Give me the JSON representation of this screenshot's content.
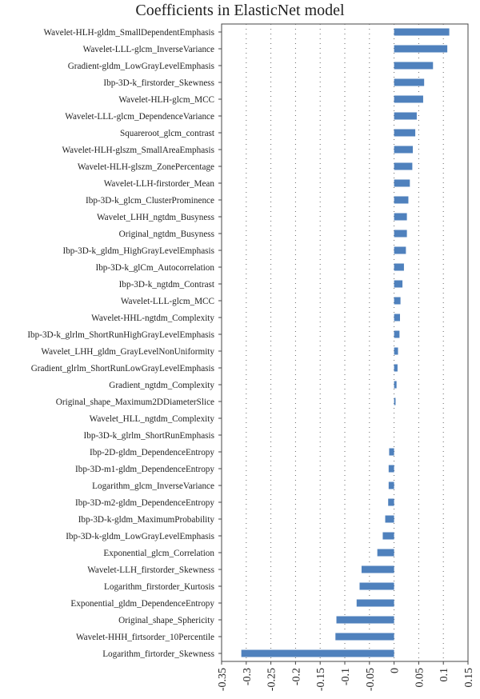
{
  "chart_data": {
    "type": "bar",
    "orientation": "horizontal",
    "title": "Coefficients in ElasticNet model",
    "xlabel": "",
    "ylabel": "",
    "xlim": [
      -0.35,
      0.15
    ],
    "xticks": [
      "-0.35",
      "-0.3",
      "-0.25",
      "-0.2",
      "-0.15",
      "-0.1",
      "-0.05",
      "0",
      "0.05",
      "0.1",
      "0.15"
    ],
    "grid": "vertical dotted",
    "bar_color": "#4f81bd",
    "categories": [
      "Wavelet-HLH-gldm_SmallDependentEmphasis",
      "Wavelet-LLL-glcm_InverseVariance",
      "Gradient-gldm_LowGrayLevelEmphasis",
      "Ibp-3D-k_firstorder_Skewness",
      "Wavelet-HLH-glcm_MCC",
      "Wavelet-LLL-glcm_DependenceVariance",
      "Squareroot_glcm_contrast",
      "Wavelet-HLH-glszm_SmallAreaEmphasis",
      "Wavelet-HLH-glszm_ZonePercentage",
      "Wavelet-LLH-firstorder_Mean",
      "Ibp-3D-k_glcm_ClusterProminence",
      "Wavelet_LHH_ngtdm_Busyness",
      "Original_ngtdm_Busyness",
      "Ibp-3D-k_gldm_HighGrayLevelEmphasis",
      "Ibp-3D-k_glCm_Autocorrelation",
      "Ibp-3D-k_ngtdm_Contrast",
      "Wavelet-LLL-glcm_MCC",
      "Wavelet-HHL-ngtdm_Complexity",
      "Ibp-3D-k_glrlm_ShortRunHighGrayLevelEmphasis",
      "Wavelet_LHH_gldm_GrayLevelNonUniformity",
      "Gradient_glrlm_ShortRunLowGrayLevelEmphasis",
      "Gradient_ngtdm_Complexity",
      "Original_shape_Maximum2DDiameterSlice",
      "Wavelet_HLL_ngtdm_Complexity",
      "Ibp-3D-k_glrlm_ShortRunEmphasis",
      "Ibp-2D-gldm_DependenceEntropy",
      "Ibp-3D-m1-gldm_DependenceEntropy",
      "Logarithm_glcm_InverseVariance",
      "Ibp-3D-m2-gldm_DependenceEntropy",
      "Ibp-3D-k-gldm_MaximumProbability",
      "Ibp-3D-k-gldm_LowGrayLevelEmphasis",
      "Exponential_glcm_Correlation",
      "Wavelet-LLH_firstorder_Skewness",
      "Logarithm_firstorder_Kurtosis",
      "Exponential_gldm_DependenceEntropy",
      "Original_shape_Sphericity",
      "Wavelet-HHH_firtsorder_10Percentile",
      "Logarithm_firtorder_Skewness"
    ],
    "values": [
      0.112,
      0.108,
      0.079,
      0.061,
      0.059,
      0.046,
      0.043,
      0.038,
      0.037,
      0.032,
      0.029,
      0.026,
      0.026,
      0.024,
      0.02,
      0.017,
      0.013,
      0.012,
      0.011,
      0.008,
      0.007,
      0.005,
      0.003,
      0.0,
      0.0,
      -0.01,
      -0.011,
      -0.011,
      -0.012,
      -0.018,
      -0.023,
      -0.034,
      -0.066,
      -0.07,
      -0.076,
      -0.117,
      -0.119,
      -0.31
    ]
  }
}
